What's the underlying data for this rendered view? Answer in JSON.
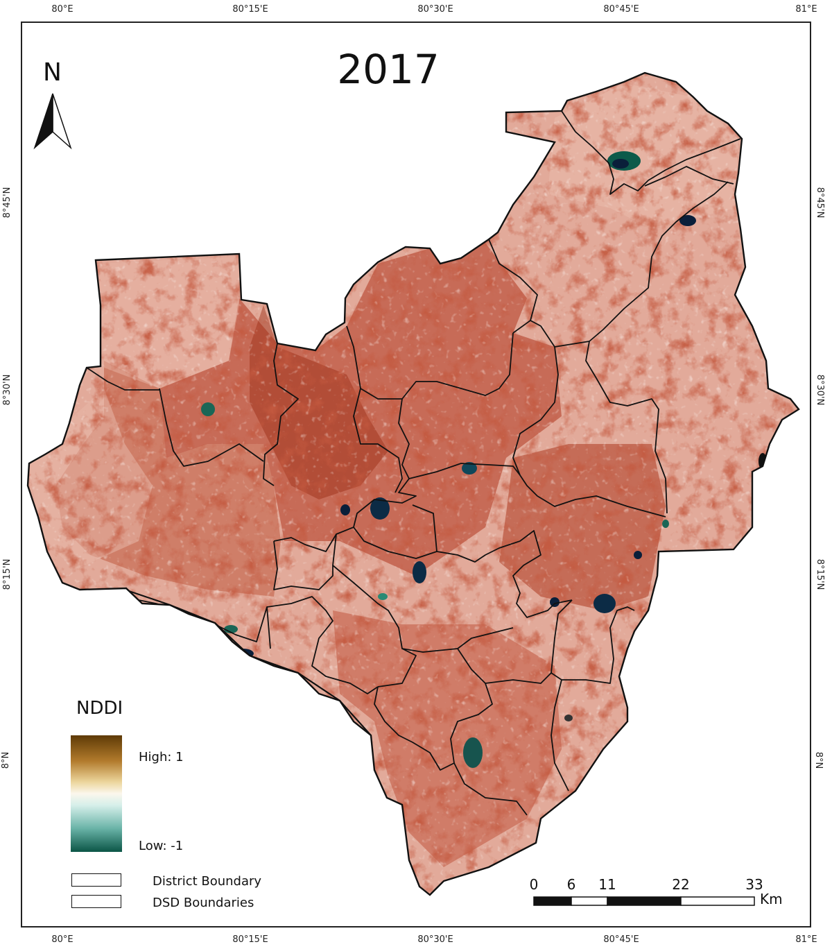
{
  "map": {
    "title": "2017",
    "north_arrow_label": "N",
    "graticule": {
      "longitudes": [
        "80°E",
        "80°15'E",
        "80°30'E",
        "80°45'E",
        "81°E"
      ],
      "latitudes": [
        "8°45'N",
        "8°30'N",
        "8°15'N",
        "8°N"
      ]
    },
    "fill_colors": {
      "high": "#5e3a06",
      "mid": "#fbf7ec",
      "low": "#0b5546",
      "land": "#e0a898",
      "dense": "#a52c16",
      "boundary": "#111111"
    }
  },
  "legend": {
    "title": "NDDI",
    "high_label": "High: 1",
    "low_label": "Low: -1",
    "items": [
      {
        "label": "District Boundary"
      },
      {
        "label": "DSD Boundaries"
      }
    ]
  },
  "scale_bar": {
    "ticks": [
      "0",
      "6",
      "11",
      "22",
      "33"
    ],
    "unit": "Km"
  }
}
